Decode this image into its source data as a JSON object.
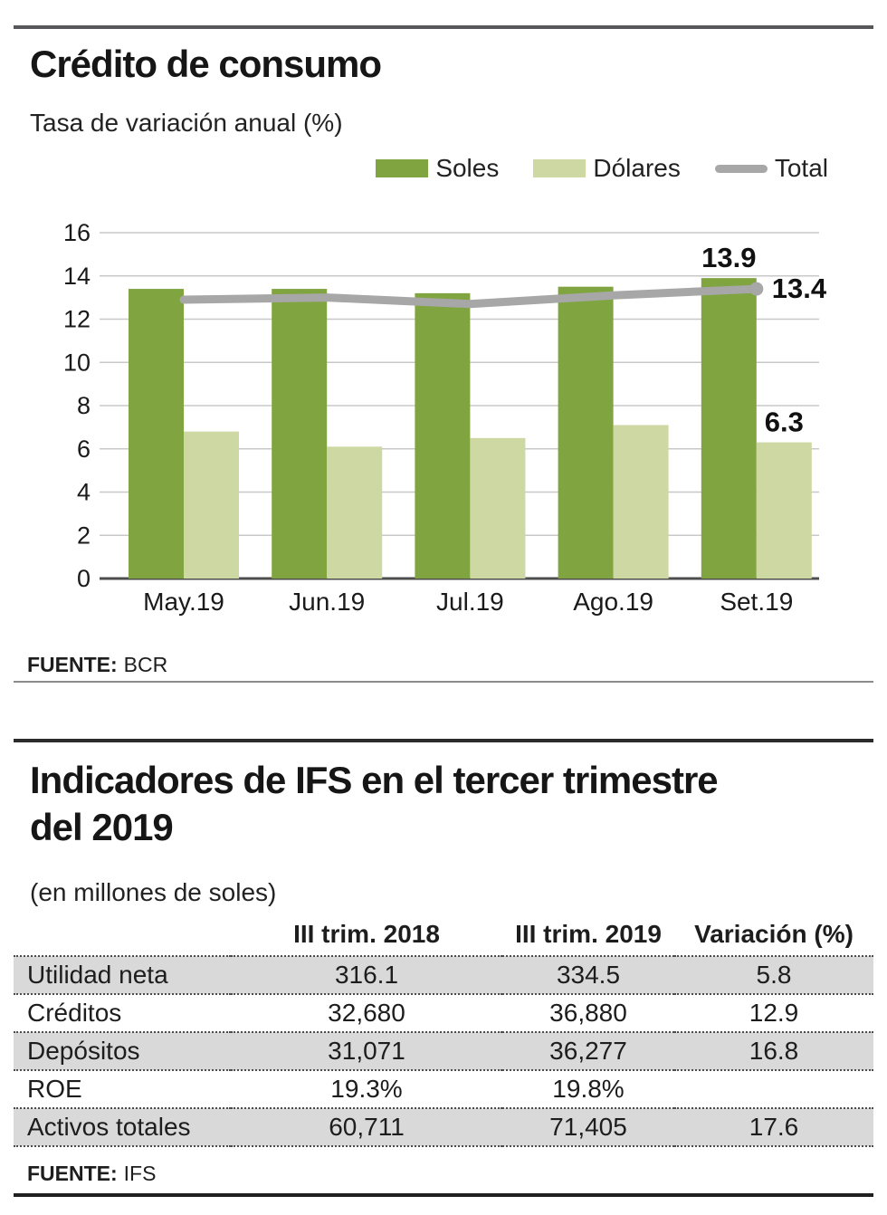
{
  "section1": {
    "source_label": "FUENTE:",
    "source_value": "BCR"
  },
  "chart_data": {
    "type": "bar",
    "title": "Crédito de consumo",
    "subtitle": "Tasa de variación anual (%)",
    "xlabel": "",
    "ylabel": "",
    "categories": [
      "May.19",
      "Jun.19",
      "Jul.19",
      "Ago.19",
      "Set.19"
    ],
    "series": [
      {
        "name": "Soles",
        "kind": "bar",
        "color": "#7fa440",
        "values": [
          13.4,
          13.4,
          13.2,
          13.5,
          13.9
        ]
      },
      {
        "name": "Dólares",
        "kind": "bar",
        "color": "#cdd8a3",
        "values": [
          6.8,
          6.1,
          6.5,
          7.1,
          6.3
        ]
      },
      {
        "name": "Total",
        "kind": "line",
        "color": "#a7a7a7",
        "values": [
          12.9,
          13.0,
          12.7,
          13.1,
          13.4
        ]
      }
    ],
    "ylim": [
      0,
      16
    ],
    "ytick_step": 2,
    "grid": true,
    "legend_position": "top-right",
    "annotations": [
      {
        "series": "Soles",
        "category": "Set.19",
        "text": "13.9"
      },
      {
        "series": "Total",
        "category": "Set.19",
        "text": "13.4"
      },
      {
        "series": "Dólares",
        "category": "Set.19",
        "text": "6.3"
      }
    ]
  },
  "section2": {
    "title_line1": "Indicadores de IFS en el tercer trimestre",
    "title_line2": "del 2019",
    "subtitle": "(en millones de soles)",
    "source_label": "FUENTE:",
    "source_value": "IFS",
    "table": {
      "stripe_color": "#d9d9d9",
      "headers": [
        "",
        "III trim. 2018",
        "III trim. 2019",
        "Variación (%)"
      ],
      "rows": [
        [
          "Utilidad neta",
          "316.1",
          "334.5",
          "5.8"
        ],
        [
          "Créditos",
          "32,680",
          "36,880",
          "12.9"
        ],
        [
          "Depósitos",
          "31,071",
          "36,277",
          "16.8"
        ],
        [
          "ROE",
          "19.3%",
          "19.8%",
          ""
        ],
        [
          "Activos totales",
          "60,711",
          "71,405",
          "17.6"
        ]
      ]
    }
  }
}
